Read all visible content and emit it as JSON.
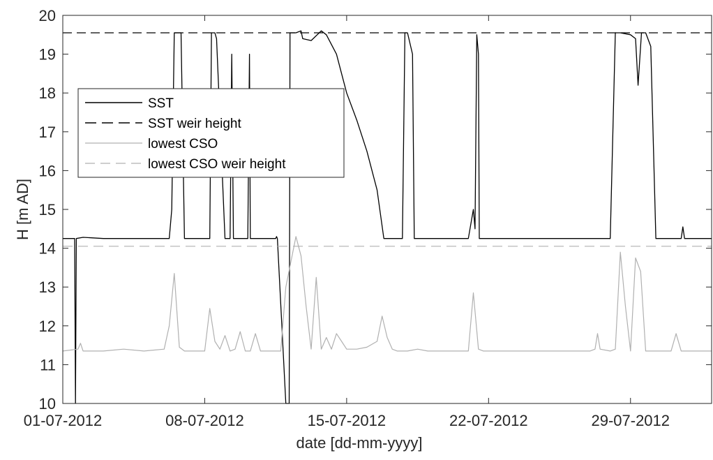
{
  "chart_data": {
    "type": "line",
    "xlabel": "date [dd-mm-yyyy]",
    "ylabel": "H [m AD]",
    "xlim": [
      "01-07-2012",
      "02-08-2012"
    ],
    "ylim": [
      10,
      20
    ],
    "x_ticks": [
      "01-07-2012",
      "08-07-2012",
      "15-07-2012",
      "22-07-2012",
      "29-07-2012"
    ],
    "y_ticks": [
      "10",
      "11",
      "12",
      "13",
      "14",
      "15",
      "16",
      "17",
      "18",
      "19",
      "20"
    ],
    "grid": false,
    "legend_position": "upper-left",
    "series": [
      {
        "name": "SST",
        "color": "#000000",
        "style": "solid",
        "x": [
          "01-07-2012 00:00",
          "01-07-2012 14:00",
          "01-07-2012 15:00",
          "01-07-2012 16:00",
          "02-07-2012 00:00",
          "03-07-2012 00:00",
          "04-07-2012 12:00",
          "05-07-2012 12:00",
          "06-07-2012 06:00",
          "06-07-2012 09:00",
          "06-07-2012 12:00",
          "06-07-2012 20:00",
          "07-07-2012 00:00",
          "07-07-2012 01:00",
          "07-07-2012 03:00",
          "07-07-2012 04:00",
          "07-07-2012 14:00",
          "07-07-2012 20:00",
          "08-07-2012 06:00",
          "08-07-2012 08:00",
          "08-07-2012 12:00",
          "08-07-2012 14:00",
          "09-07-2012 00:00",
          "09-07-2012 06:00",
          "09-07-2012 08:00",
          "09-07-2012 10:00",
          "09-07-2012 16:00",
          "09-07-2012 18:00",
          "10-07-2012 03:00",
          "10-07-2012 05:00",
          "10-07-2012 06:00",
          "10-07-2012 18:00",
          "11-07-2012 12:00",
          "11-07-2012 13:00",
          "11-07-2012 14:00",
          "12-07-2012 00:00",
          "12-07-2012 04:00",
          "12-07-2012 04:30",
          "12-07-2012 05:00",
          "12-07-2012 12:00",
          "12-07-2012 18:00",
          "12-07-2012 19:00",
          "12-07-2012 20:00",
          "13-07-2012 06:00",
          "13-07-2012 18:00",
          "14-07-2012 00:00",
          "14-07-2012 12:00",
          "14-07-2012 18:00",
          "15-07-2012 00:00",
          "15-07-2012 12:00",
          "16-07-2012 00:00",
          "16-07-2012 12:00",
          "16-07-2012 20:00",
          "17-07-2012 00:00",
          "17-07-2012 03:00",
          "17-07-2012 06:00",
          "17-07-2012 12:00",
          "17-07-2012 18:00",
          "17-07-2012 21:00",
          "18-07-2012 00:00",
          "18-07-2012 06:00",
          "18-07-2012 08:00",
          "18-07-2012 12:00",
          "18-07-2012 18:00",
          "19-07-2012 00:00",
          "19-07-2012 06:00",
          "19-07-2012 12:00",
          "20-07-2012 00:00",
          "21-07-2012 00:00",
          "21-07-2012 06:00",
          "21-07-2012 08:00",
          "21-07-2012 10:00",
          "21-07-2012 12:00",
          "21-07-2012 13:00",
          "21-07-2012 16:00",
          "21-07-2012 18:00",
          "22-07-2012 00:00",
          "24-07-2012 00:00",
          "26-07-2012 00:00",
          "28-07-2012 00:00",
          "28-07-2012 06:00",
          "28-07-2012 12:00",
          "29-07-2012 00:00",
          "29-07-2012 06:00",
          "29-07-2012 09:00",
          "29-07-2012 13:00",
          "29-07-2012 18:00",
          "30-07-2012 00:00",
          "30-07-2012 06:00",
          "30-07-2012 12:00",
          "31-07-2012 00:00",
          "31-07-2012 12:00",
          "31-07-2012 14:00",
          "31-07-2012 16:00",
          "01-08-2012 00:00",
          "01-08-2012 12:00",
          "02-08-2012 00:00"
        ],
        "y": [
          14.25,
          14.25,
          10.0,
          14.25,
          14.28,
          14.25,
          14.25,
          14.25,
          14.25,
          15.0,
          19.55,
          19.55,
          14.25,
          14.25,
          14.25,
          14.25,
          14.25,
          14.25,
          14.25,
          19.55,
          19.55,
          19.4,
          14.25,
          14.25,
          19.0,
          14.25,
          14.25,
          14.25,
          14.25,
          19.0,
          14.25,
          14.25,
          14.25,
          14.3,
          14.25,
          10.0,
          10.0,
          14.25,
          19.55,
          19.55,
          19.6,
          19.5,
          19.4,
          19.35,
          19.6,
          19.5,
          19.0,
          18.5,
          18.0,
          17.3,
          16.5,
          15.5,
          14.25,
          14.25,
          14.25,
          14.25,
          14.25,
          14.25,
          19.55,
          19.55,
          19.0,
          14.25,
          14.25,
          14.25,
          14.25,
          14.25,
          14.25,
          14.25,
          14.25,
          15.0,
          14.5,
          19.5,
          19.0,
          14.25,
          14.25,
          14.25,
          14.25,
          14.25,
          14.25,
          14.25,
          19.55,
          19.55,
          19.5,
          19.4,
          18.2,
          19.55,
          19.55,
          19.2,
          14.25,
          14.25,
          14.25,
          14.25,
          14.55,
          14.25,
          14.25,
          14.25,
          14.25
        ]
      },
      {
        "name": "SST weir height",
        "color": "#000000",
        "style": "dashed",
        "x": [
          "01-07-2012 00:00",
          "02-08-2012 00:00"
        ],
        "y": [
          19.55,
          19.55
        ]
      },
      {
        "name": "lowest CSO",
        "color": "#b0b0b0",
        "style": "solid",
        "x": [
          "01-07-2012 00:00",
          "01-07-2012 18:00",
          "01-07-2012 21:00",
          "02-07-2012 00:00",
          "03-07-2012 00:00",
          "04-07-2012 00:00",
          "05-07-2012 00:00",
          "06-07-2012 00:00",
          "06-07-2012 06:00",
          "06-07-2012 12:00",
          "06-07-2012 18:00",
          "07-07-2012 00:00",
          "07-07-2012 12:00",
          "08-07-2012 00:00",
          "08-07-2012 06:00",
          "08-07-2012 12:00",
          "08-07-2012 18:00",
          "09-07-2012 00:00",
          "09-07-2012 06:00",
          "09-07-2012 12:00",
          "09-07-2012 18:00",
          "10-07-2012 00:00",
          "10-07-2012 06:00",
          "10-07-2012 12:00",
          "10-07-2012 18:00",
          "11-07-2012 00:00",
          "11-07-2012 06:00",
          "11-07-2012 12:00",
          "11-07-2012 18:00",
          "12-07-2012 00:00",
          "12-07-2012 12:00",
          "12-07-2012 18:00",
          "13-07-2012 00:00",
          "13-07-2012 06:00",
          "13-07-2012 12:00",
          "13-07-2012 18:00",
          "14-07-2012 00:00",
          "14-07-2012 06:00",
          "14-07-2012 12:00",
          "14-07-2012 18:00",
          "15-07-2012 00:00",
          "15-07-2012 12:00",
          "16-07-2012 00:00",
          "16-07-2012 12:00",
          "16-07-2012 18:00",
          "17-07-2012 00:00",
          "17-07-2012 06:00",
          "17-07-2012 12:00",
          "17-07-2012 18:00",
          "18-07-2012 00:00",
          "18-07-2012 12:00",
          "19-07-2012 00:00",
          "20-07-2012 00:00",
          "21-07-2012 00:00",
          "21-07-2012 06:00",
          "21-07-2012 12:00",
          "21-07-2012 18:00",
          "22-07-2012 00:00",
          "23-07-2012 00:00",
          "24-07-2012 00:00",
          "25-07-2012 00:00",
          "26-07-2012 00:00",
          "27-07-2012 00:00",
          "27-07-2012 06:00",
          "27-07-2012 09:00",
          "27-07-2012 12:00",
          "28-07-2012 00:00",
          "28-07-2012 06:00",
          "28-07-2012 12:00",
          "28-07-2012 18:00",
          "29-07-2012 00:00",
          "29-07-2012 06:00",
          "29-07-2012 12:00",
          "29-07-2012 18:00",
          "30-07-2012 00:00",
          "30-07-2012 06:00",
          "30-07-2012 12:00",
          "31-07-2012 00:00",
          "31-07-2012 06:00",
          "31-07-2012 12:00",
          "31-07-2012 18:00",
          "01-08-2012 00:00",
          "02-08-2012 00:00"
        ],
        "y": [
          11.35,
          11.4,
          11.55,
          11.35,
          11.35,
          11.4,
          11.35,
          11.4,
          12.0,
          13.35,
          11.45,
          11.35,
          11.35,
          11.35,
          12.45,
          11.6,
          11.4,
          11.75,
          11.35,
          11.4,
          11.85,
          11.35,
          11.35,
          11.8,
          11.35,
          11.35,
          11.35,
          11.35,
          11.35,
          13.0,
          14.3,
          13.8,
          12.5,
          11.4,
          13.25,
          11.4,
          11.7,
          11.4,
          11.8,
          11.6,
          11.4,
          11.4,
          11.45,
          11.6,
          12.25,
          11.7,
          11.4,
          11.35,
          11.35,
          11.35,
          11.4,
          11.35,
          11.35,
          11.35,
          12.85,
          11.4,
          11.35,
          11.35,
          11.35,
          11.35,
          11.35,
          11.35,
          11.35,
          11.4,
          11.8,
          11.4,
          11.35,
          11.4,
          13.9,
          12.5,
          11.35,
          13.75,
          13.4,
          11.35,
          11.35,
          11.35,
          11.35,
          11.35,
          11.8,
          11.35,
          11.35,
          11.35,
          11.35
        ]
      },
      {
        "name": "lowest CSO weir height",
        "color": "#b0b0b0",
        "style": "dashed",
        "x": [
          "01-07-2012 00:00",
          "02-08-2012 00:00"
        ],
        "y": [
          14.05,
          14.05
        ]
      }
    ]
  }
}
